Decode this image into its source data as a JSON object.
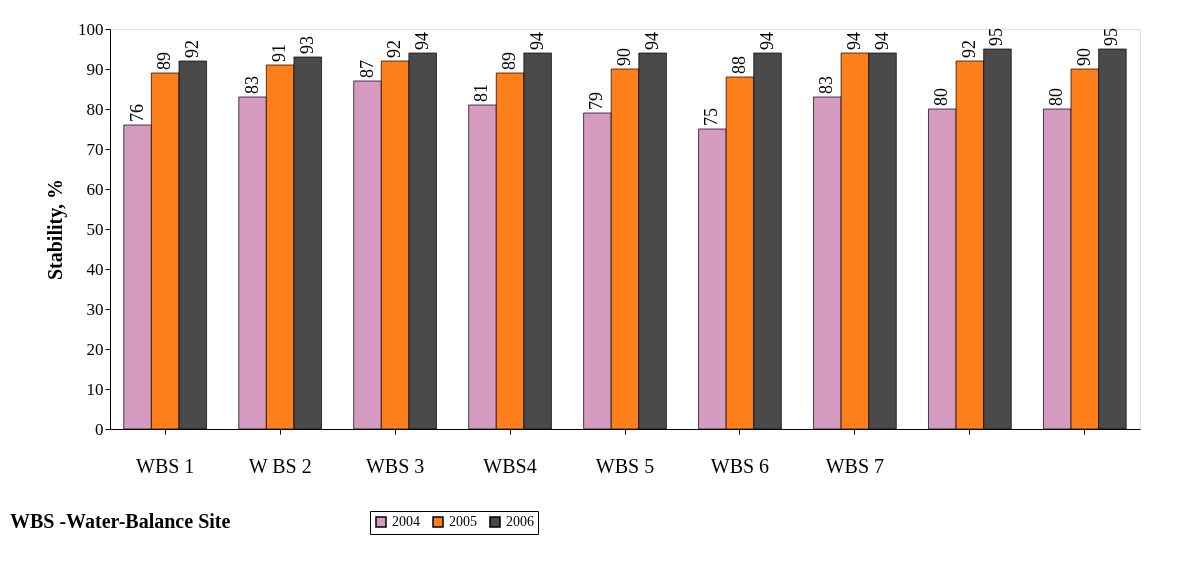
{
  "chart_data": {
    "type": "bar",
    "ylabel": "Stability, %",
    "categories": [
      "WBS 1",
      "W BS 2",
      "WBS 3",
      "WBS4",
      "WBS 5",
      "WBS 6",
      "WBS 7",
      null,
      null
    ],
    "series": [
      {
        "name": "2004",
        "color": "#d49ac0",
        "values": [
          76,
          83,
          87,
          81,
          79,
          75,
          83,
          80,
          80
        ]
      },
      {
        "name": "2005",
        "color": "#ff7f1a",
        "values": [
          89,
          91,
          92,
          89,
          90,
          88,
          94,
          92,
          90
        ]
      },
      {
        "name": "2006",
        "color": "#4a4a4a",
        "values": [
          92,
          93,
          94,
          94,
          94,
          94,
          94,
          95,
          95
        ]
      }
    ],
    "ylim": [
      0,
      100
    ],
    "yticks": [
      0,
      10,
      20,
      30,
      40,
      50,
      60,
      70,
      80,
      90,
      100
    ],
    "data_labels": true,
    "grid": false,
    "legend": "bottom",
    "annotations": [
      "WBS -Water-Balance Site"
    ]
  }
}
